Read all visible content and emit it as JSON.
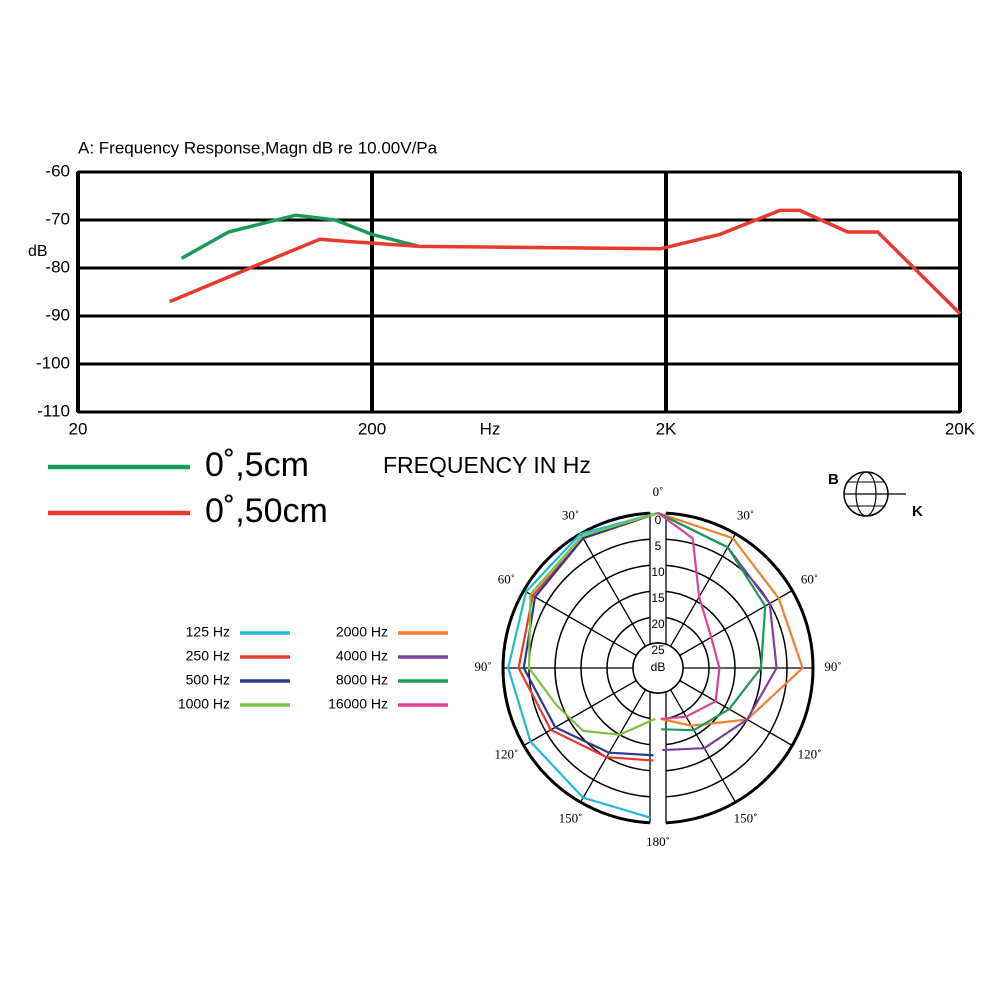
{
  "chart_data": [
    {
      "type": "line",
      "title": "A: Frequency Response,Magn dB re 10.00V/Pa",
      "xlabel": "FREQUENCY IN Hz",
      "x_unit": "Hz",
      "ylabel": "dB",
      "log_x": true,
      "grid": true,
      "xlim": [
        20,
        20000
      ],
      "xticks": [
        20,
        200,
        {
          "value": 2000,
          "label": "2K"
        },
        {
          "value": 20000,
          "label": "20K"
        }
      ],
      "ylim": [
        -110,
        -60
      ],
      "yticks": [
        -60,
        -70,
        -80,
        -90,
        -100,
        -110
      ],
      "series": [
        {
          "name": "0˚,5cm",
          "color": "#1a9a5a",
          "x": [
            45,
            65,
            110,
            150,
            200,
            290
          ],
          "values": [
            -78,
            -72.5,
            -69,
            -70,
            -73,
            -75.5
          ]
        },
        {
          "name": "0˚,50cm",
          "color": "#e8392e",
          "x": [
            41,
            77,
            133,
            168,
            291,
            1910,
            3050,
            4880,
            5700,
            8300,
            10500,
            20000
          ],
          "values": [
            -87,
            -80,
            -74,
            -74.5,
            -75.5,
            -76,
            -73,
            -68,
            -68,
            -72.5,
            -72.5,
            -89.5
          ]
        }
      ]
    },
    {
      "type": "polar",
      "r_unit": "dB",
      "angle_ticks": [
        {
          "value": 0,
          "label": "0˚"
        },
        {
          "value": 30,
          "label": "30˚"
        },
        {
          "value": 60,
          "label": "60˚"
        },
        {
          "value": 90,
          "label": "90˚"
        },
        {
          "value": 120,
          "label": "120˚"
        },
        {
          "value": 150,
          "label": "150˚"
        },
        {
          "value": 180,
          "label": "180˚"
        }
      ],
      "rlim": [
        0,
        25
      ],
      "rticks": [
        0,
        5,
        10,
        15,
        20,
        25
      ],
      "series": [
        {
          "name": "125 Hz",
          "color": "#22b8d8",
          "side": "left",
          "angles": [
            0,
            30,
            60,
            90,
            120,
            150,
            177
          ],
          "values": [
            0,
            0,
            0.5,
            1,
            1.5,
            1,
            1
          ]
        },
        {
          "name": "250 Hz",
          "color": "#e8392e",
          "side": "left",
          "angles": [
            0,
            30,
            60,
            90,
            120,
            150,
            177
          ],
          "values": [
            0,
            1,
            2,
            3,
            6,
            10,
            12
          ]
        },
        {
          "name": "500 Hz",
          "color": "#2b3a8f",
          "side": "left",
          "angles": [
            0,
            30,
            60,
            90,
            120,
            150,
            177
          ],
          "values": [
            0,
            1,
            2.5,
            4,
            7,
            11,
            13
          ]
        },
        {
          "name": "1000 Hz",
          "color": "#7cc242",
          "side": "left",
          "angles": [
            0,
            30,
            60,
            90,
            110,
            130,
            150,
            177
          ],
          "values": [
            0,
            0.5,
            1.5,
            5,
            9,
            11,
            15,
            20
          ]
        },
        {
          "name": "2000 Hz",
          "color": "#f07f2e",
          "side": "right",
          "angles": [
            0,
            30,
            60,
            90,
            120,
            150,
            177
          ],
          "values": [
            0,
            1,
            3,
            2,
            10,
            17,
            20
          ]
        },
        {
          "name": "4000 Hz",
          "color": "#7b3fa0",
          "side": "right",
          "angles": [
            0,
            30,
            60,
            90,
            120,
            150,
            177
          ],
          "values": [
            0,
            3,
            5,
            7,
            10,
            12,
            14
          ]
        },
        {
          "name": "8000 Hz",
          "color": "#1a9a5a",
          "side": "right",
          "angles": [
            0,
            30,
            60,
            90,
            120,
            150,
            177
          ],
          "values": [
            0,
            3,
            6,
            10,
            14,
            16,
            18
          ]
        },
        {
          "name": "16000 Hz",
          "color": "#e0409a",
          "side": "right",
          "angles": [
            0,
            15,
            30,
            60,
            90,
            120,
            150,
            177
          ],
          "values": [
            0,
            4,
            14,
            18,
            18,
            17,
            19,
            20
          ]
        }
      ]
    }
  ],
  "logo": {
    "top": "B",
    "bottom": "K"
  }
}
